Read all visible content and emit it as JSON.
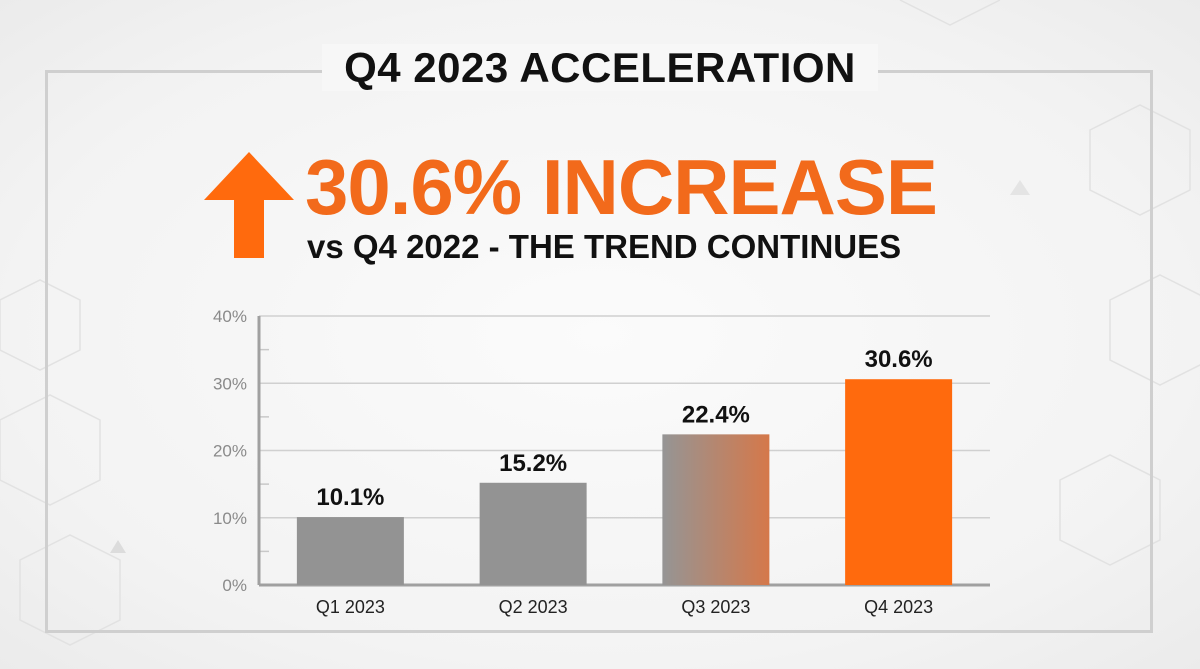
{
  "header": {
    "title": "Q4 2023 ACCELERATION",
    "headline": "30.6% INCREASE",
    "subheadline": "vs Q4 2022 - THE TREND CONTINUES",
    "icon": "arrow-up-icon"
  },
  "colors": {
    "accent": "#ff6a0d",
    "gray_bar": "#939393",
    "text": "#111111"
  },
  "chart_data": {
    "type": "bar",
    "title": "",
    "xlabel": "",
    "ylabel": "",
    "categories": [
      "Q1 2023",
      "Q2 2023",
      "Q3 2023",
      "Q4 2023"
    ],
    "values": [
      10.1,
      15.2,
      22.4,
      30.6
    ],
    "data_labels": [
      "10.1%",
      "15.2%",
      "22.4%",
      "30.6%"
    ],
    "ylim": [
      0,
      40
    ],
    "yticks": [
      0,
      10,
      20,
      30,
      40
    ],
    "ytick_labels": [
      "0%",
      "10%",
      "20%",
      "30%",
      "40%"
    ],
    "grid": true,
    "legend": "none"
  }
}
